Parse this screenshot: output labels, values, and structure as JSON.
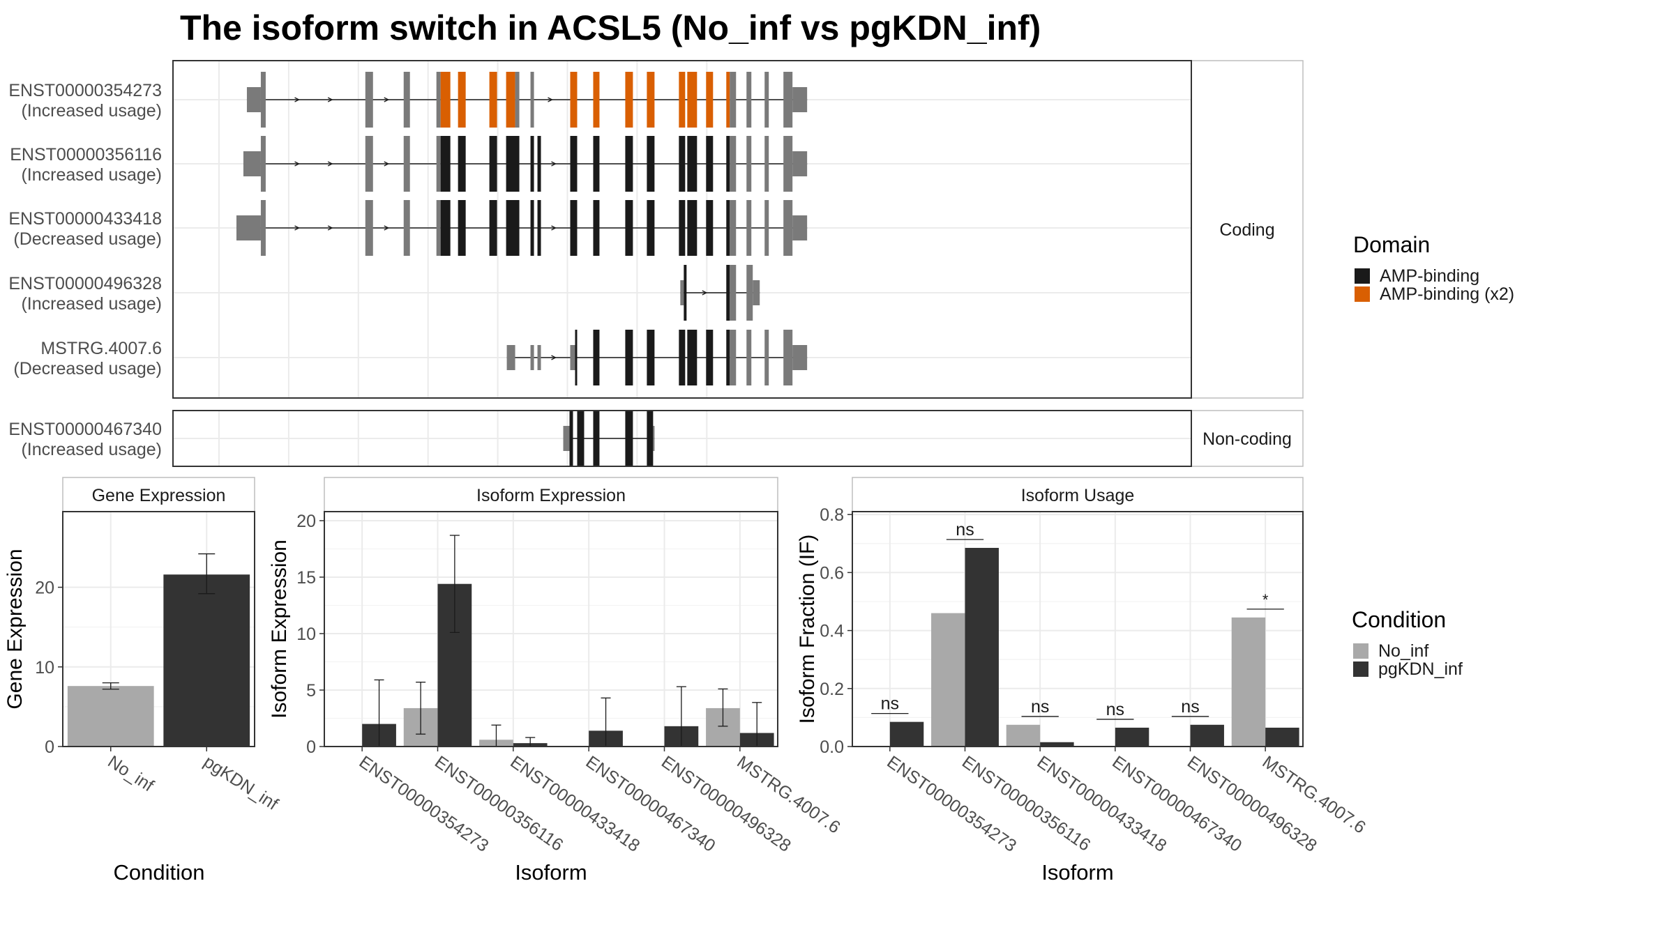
{
  "title": "The isoform switch in ACSL5 (No_inf vs pgKDN_inf)",
  "structure": {
    "coding_label": "Coding",
    "noncoding_label": "Non-coding",
    "transcripts": [
      {
        "id": "ENST00000354273",
        "usage": "(Increased usage)",
        "group": "coding",
        "segments": [
          [
            -600,
            -400,
            "u"
          ],
          [
            -400,
            -330,
            "c"
          ],
          [
            1100,
            1210,
            "c"
          ],
          [
            1650,
            1740,
            "c"
          ],
          [
            2120,
            2180,
            "c"
          ],
          [
            2180,
            2320,
            "a2"
          ],
          [
            2430,
            2540,
            "a2"
          ],
          [
            2880,
            2990,
            "a2"
          ],
          [
            3120,
            3250,
            "a2"
          ],
          [
            3250,
            3310,
            "c"
          ],
          [
            3470,
            3520,
            "c"
          ],
          [
            4040,
            4140,
            "a2"
          ],
          [
            4370,
            4460,
            "a2"
          ],
          [
            4830,
            4940,
            "a2"
          ],
          [
            5140,
            5250,
            "a2"
          ],
          [
            5600,
            5690,
            "a2"
          ],
          [
            5720,
            5860,
            "a2"
          ],
          [
            5990,
            6090,
            "a2"
          ],
          [
            6280,
            6330,
            "a2"
          ],
          [
            6330,
            6420,
            "c"
          ],
          [
            6570,
            6640,
            "c"
          ],
          [
            6830,
            6890,
            "c"
          ],
          [
            7100,
            7230,
            "c"
          ],
          [
            7230,
            7440,
            "u"
          ]
        ]
      },
      {
        "id": "ENST00000356116",
        "usage": "(Increased usage)",
        "group": "coding",
        "segments": [
          [
            -650,
            -400,
            "u"
          ],
          [
            -400,
            -330,
            "c"
          ],
          [
            1100,
            1210,
            "c"
          ],
          [
            1650,
            1740,
            "c"
          ],
          [
            2120,
            2180,
            "c"
          ],
          [
            2180,
            2320,
            "a"
          ],
          [
            2430,
            2540,
            "a"
          ],
          [
            2880,
            2990,
            "a"
          ],
          [
            3120,
            3310,
            "a"
          ],
          [
            3470,
            3520,
            "a"
          ],
          [
            3570,
            3620,
            "a"
          ],
          [
            4040,
            4140,
            "a"
          ],
          [
            4370,
            4460,
            "a"
          ],
          [
            4830,
            4940,
            "a"
          ],
          [
            5140,
            5250,
            "a"
          ],
          [
            5600,
            5690,
            "a"
          ],
          [
            5720,
            5860,
            "a"
          ],
          [
            5990,
            6090,
            "a"
          ],
          [
            6280,
            6330,
            "a"
          ],
          [
            6330,
            6420,
            "c"
          ],
          [
            6570,
            6640,
            "c"
          ],
          [
            6830,
            6890,
            "c"
          ],
          [
            7100,
            7230,
            "c"
          ],
          [
            7230,
            7440,
            "u"
          ]
        ]
      },
      {
        "id": "ENST00000433418",
        "usage": "(Decreased usage)",
        "group": "coding",
        "segments": [
          [
            -750,
            -400,
            "u"
          ],
          [
            -400,
            -330,
            "c"
          ],
          [
            1100,
            1210,
            "c"
          ],
          [
            1650,
            1740,
            "c"
          ],
          [
            2120,
            2180,
            "c"
          ],
          [
            2180,
            2320,
            "a"
          ],
          [
            2430,
            2540,
            "a"
          ],
          [
            2880,
            2990,
            "a"
          ],
          [
            3120,
            3310,
            "a"
          ],
          [
            3470,
            3520,
            "a"
          ],
          [
            3570,
            3620,
            "a"
          ],
          [
            4040,
            4140,
            "a"
          ],
          [
            4370,
            4460,
            "a"
          ],
          [
            4830,
            4940,
            "a"
          ],
          [
            5140,
            5250,
            "a"
          ],
          [
            5600,
            5690,
            "a"
          ],
          [
            5720,
            5860,
            "a"
          ],
          [
            5990,
            6090,
            "a"
          ],
          [
            6280,
            6330,
            "a"
          ],
          [
            6330,
            6420,
            "c"
          ],
          [
            6570,
            6640,
            "c"
          ],
          [
            6830,
            6890,
            "c"
          ],
          [
            7100,
            7230,
            "c"
          ],
          [
            7230,
            7440,
            "u"
          ]
        ]
      },
      {
        "id": "ENST00000496328",
        "usage": "(Increased usage)",
        "group": "coding",
        "segments": [
          [
            5620,
            5670,
            "u"
          ],
          [
            5670,
            5710,
            "a"
          ],
          [
            6280,
            6330,
            "a"
          ],
          [
            6330,
            6420,
            "c"
          ],
          [
            6570,
            6660,
            "c"
          ],
          [
            6660,
            6760,
            "u"
          ]
        ]
      },
      {
        "id": "MSTRG.4007.6",
        "usage": "(Decreased usage)",
        "group": "coding",
        "segments": [
          [
            3130,
            3250,
            "u"
          ],
          [
            3470,
            3520,
            "u"
          ],
          [
            3570,
            3620,
            "u"
          ],
          [
            4040,
            4110,
            "u"
          ],
          [
            4110,
            4140,
            "a"
          ],
          [
            4370,
            4460,
            "a"
          ],
          [
            4830,
            4940,
            "a"
          ],
          [
            5140,
            5250,
            "a"
          ],
          [
            5600,
            5690,
            "a"
          ],
          [
            5720,
            5860,
            "a"
          ],
          [
            5990,
            6090,
            "a"
          ],
          [
            6280,
            6330,
            "a"
          ],
          [
            6330,
            6420,
            "c"
          ],
          [
            6570,
            6640,
            "c"
          ],
          [
            6830,
            6890,
            "c"
          ],
          [
            7100,
            7230,
            "c"
          ],
          [
            7230,
            7440,
            "u"
          ]
        ]
      },
      {
        "id": "ENST00000467340",
        "usage": "(Increased usage)",
        "group": "noncoding",
        "segments": [
          [
            3940,
            4030,
            "u"
          ],
          [
            4030,
            4080,
            "a"
          ],
          [
            4140,
            4240,
            "a"
          ],
          [
            4370,
            4460,
            "a"
          ],
          [
            4830,
            4940,
            "a"
          ],
          [
            5140,
            5230,
            "a"
          ],
          [
            5230,
            5250,
            "u"
          ]
        ]
      }
    ]
  },
  "legend_domain": {
    "title": "Domain",
    "items": [
      {
        "label": "AMP-binding",
        "color": "#1a1a1a"
      },
      {
        "label": "AMP-binding (x2)",
        "color": "#d95f02"
      }
    ]
  },
  "legend_condition": {
    "title": "Condition",
    "items": [
      {
        "label": "No_inf",
        "color": "#a9a9a9"
      },
      {
        "label": "pgKDN_inf",
        "color": "#333333"
      }
    ]
  },
  "chart_data": [
    {
      "type": "bar",
      "strip": "Gene Expression",
      "xlabel": "Condition",
      "ylabel": "Gene Expression",
      "ylim": [
        0,
        29.5
      ],
      "yticks": [
        0,
        10,
        20
      ],
      "categories": [
        "No_inf",
        "pgKDN_inf"
      ],
      "values": [
        7.6,
        21.6
      ],
      "errors": [
        [
          7.2,
          8.0
        ],
        [
          19.2,
          24.2
        ]
      ],
      "colors": [
        "#a9a9a9",
        "#333333"
      ]
    },
    {
      "type": "bar",
      "strip": "Isoform Expression",
      "xlabel": "Isoform",
      "ylabel": "Isoform Expression",
      "ylim": [
        0,
        20.8
      ],
      "yticks": [
        0,
        5,
        10,
        15,
        20
      ],
      "categories": [
        "ENST00000354273",
        "ENST00000356116",
        "ENST00000433418",
        "ENST00000467340",
        "ENST00000496328",
        "MSTRG.4007.6"
      ],
      "series": [
        {
          "name": "No_inf",
          "values": [
            0,
            3.4,
            0.6,
            0,
            0,
            3.4
          ],
          "errors": [
            [
              0,
              0
            ],
            [
              1.1,
              5.7
            ],
            [
              0,
              1.9
            ],
            [
              0,
              0
            ],
            [
              0,
              0
            ],
            [
              1.8,
              5.1
            ]
          ]
        },
        {
          "name": "pgKDN_inf",
          "values": [
            2.0,
            14.4,
            0.3,
            1.4,
            1.8,
            1.2
          ],
          "errors": [
            [
              0,
              5.9
            ],
            [
              10.1,
              18.7
            ],
            [
              0,
              0.8
            ],
            [
              0,
              4.3
            ],
            [
              0,
              5.3
            ],
            [
              0,
              3.9
            ]
          ]
        }
      ]
    },
    {
      "type": "bar",
      "strip": "Isoform Usage",
      "xlabel": "Isoform",
      "ylabel": "Isoform Fraction (IF)",
      "ylim": [
        0,
        0.81
      ],
      "yticks": [
        0.0,
        0.2,
        0.4,
        0.6,
        0.8
      ],
      "categories": [
        "ENST00000354273",
        "ENST00000356116",
        "ENST00000433418",
        "ENST00000467340",
        "ENST00000496328",
        "MSTRG.4007.6"
      ],
      "series": [
        {
          "name": "No_inf",
          "values": [
            0,
            0.46,
            0.075,
            0,
            0,
            0.445
          ]
        },
        {
          "name": "pgKDN_inf",
          "values": [
            0.085,
            0.685,
            0.015,
            0.065,
            0.075,
            0.065
          ]
        }
      ],
      "significance": [
        "ns",
        "ns",
        "ns",
        "ns",
        "ns",
        "*"
      ]
    }
  ]
}
